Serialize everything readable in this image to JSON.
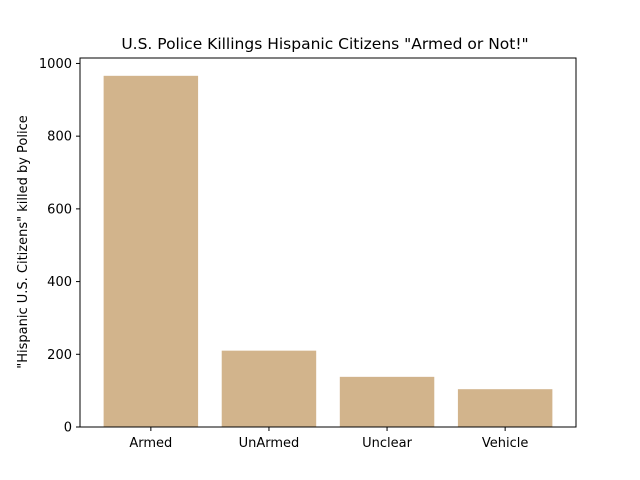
{
  "chart_data": {
    "type": "bar",
    "title": "U.S. Police Killings Hispanic Citizens \"Armed or Not!\"",
    "xlabel": "",
    "ylabel": "\"Hispanic U.S. Citizens\" killed by Police",
    "categories": [
      "Armed",
      "UnArmed",
      "Unclear",
      "Vehicle"
    ],
    "values": [
      966,
      210,
      138,
      104
    ],
    "ylim": [
      0,
      1015
    ],
    "yticks": [
      0,
      200,
      400,
      600,
      800,
      1000
    ],
    "bar_color": "#d2b48c",
    "grid": false
  }
}
